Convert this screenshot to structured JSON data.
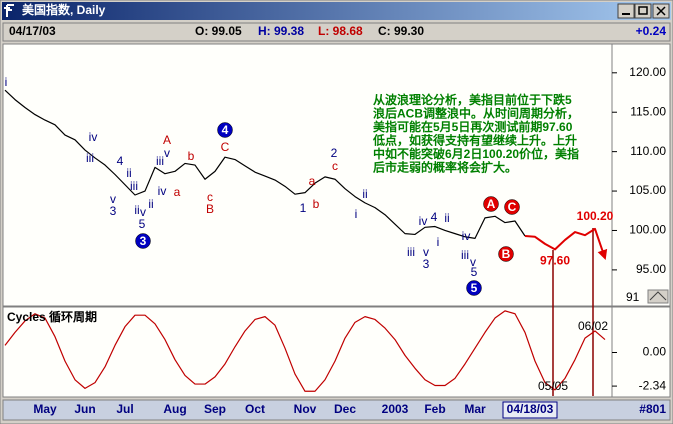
{
  "ui": {
    "window_title": "美国指数, Daily",
    "date": "04/17/03",
    "open": "O: 99.05",
    "high": "H: 99.38",
    "low": "L: 98.68",
    "close": "C: 99.30",
    "change": "+0.24",
    "scale_label": "91",
    "cursor_date": "04/18/03",
    "count": "#801"
  },
  "chart_data": [
    {
      "type": "line",
      "categories": [
        null,
        null,
        null,
        null,
        "May",
        null,
        null,
        null,
        "Jun",
        null,
        null,
        null,
        "Jul",
        null,
        null,
        null,
        null,
        "Aug",
        null,
        null,
        null,
        "Sep",
        null,
        null,
        null,
        "Oct",
        null,
        null,
        null,
        null,
        "Nov",
        null,
        null,
        null,
        "Dec",
        null,
        null,
        null,
        null,
        "2003",
        null,
        null,
        null,
        "Feb",
        null,
        null,
        null,
        "Mar",
        null,
        null,
        null,
        null,
        null,
        null,
        null,
        null,
        null,
        null,
        null,
        null,
        null
      ],
      "series": [
        {
          "color": "#000000",
          "values": [
            117.8,
            116.6,
            115.6,
            114.7,
            114,
            113.4,
            112.1,
            111.5,
            110.2,
            109.2,
            108.3,
            107.1,
            105.8,
            104.5,
            105.0,
            108,
            107.2,
            107.5,
            108.5,
            108.3,
            106.5,
            107.5,
            109.3,
            109,
            108.2,
            107.4,
            106.9,
            106.4,
            105.6,
            104.6,
            104.8,
            106,
            106.8,
            106.5,
            105.3,
            104.3,
            103.5,
            102.9,
            102,
            100.8,
            99.6,
            99.5,
            100.4,
            100.5,
            100,
            99.6,
            99.2,
            99.0,
            101.6,
            101.8,
            101,
            101.2,
            99.3,
            null,
            null,
            null,
            null,
            null,
            null,
            null,
            null
          ]
        },
        {
          "color": "#e00000",
          "arrow": true,
          "values": [
            null,
            null,
            null,
            null,
            null,
            null,
            null,
            null,
            null,
            null,
            null,
            null,
            null,
            null,
            null,
            null,
            null,
            null,
            null,
            null,
            null,
            null,
            null,
            null,
            null,
            null,
            null,
            null,
            null,
            null,
            null,
            null,
            null,
            null,
            null,
            null,
            null,
            null,
            null,
            null,
            null,
            null,
            null,
            null,
            null,
            null,
            null,
            null,
            null,
            null,
            null,
            null,
            99.3,
            99.2,
            98.3,
            97.6,
            98.8,
            99.8,
            99.4,
            100.2,
            96.5
          ],
          "value_labels": [
            null,
            null,
            null,
            null,
            null,
            null,
            null,
            null,
            null,
            null,
            null,
            null,
            null,
            null,
            null,
            null,
            null,
            null,
            null,
            null,
            null,
            null,
            null,
            null,
            null,
            null,
            null,
            null,
            null,
            null,
            null,
            null,
            null,
            null,
            null,
            null,
            null,
            null,
            null,
            null,
            null,
            null,
            null,
            null,
            null,
            null,
            null,
            null,
            null,
            null,
            null,
            null,
            null,
            null,
            null,
            "97.60",
            null,
            null,
            null,
            "100.20",
            null
          ]
        }
      ],
      "ylim": [
        90.8,
        123.4
      ],
      "yticks": [
        {
          "value": 95,
          "label": "95.00"
        },
        {
          "value": 100,
          "label": "100.00"
        },
        {
          "value": 105,
          "label": "105.00"
        },
        {
          "value": 110,
          "label": "110.00"
        },
        {
          "value": 115,
          "label": "115.00"
        },
        {
          "value": 120,
          "label": "120.00"
        }
      ],
      "grid": false,
      "wave_labels": [
        "i",
        "iv",
        "iii",
        "4",
        "ii",
        "v",
        "3",
        "iii",
        "ii",
        "v",
        "5",
        "3",
        "iv",
        "ii",
        "iii",
        "v",
        "A",
        "a",
        "b",
        "c",
        "B",
        "C",
        "4",
        "1",
        "a",
        "b",
        "2",
        "c",
        "ii",
        "i",
        "iv",
        "4",
        "ii",
        "iii",
        "i",
        "v",
        "3",
        "iv",
        "iii",
        "v",
        "5",
        "5",
        "A",
        "C",
        "B"
      ],
      "note": [
        "从波浪理论分析，美指目前位于下跌5",
        "浪后ACB调整浪中。从时间周期分析，",
        "美指可能在5月5日再次测试前期97.60",
        "低点，如获得支持有望继续上升。上升",
        "中如不能突破6月2日100.20价位，美指",
        "后市走弱的概率将会扩大。"
      ]
    },
    {
      "type": "line",
      "title": "Cycles 循环周期",
      "series": [
        {
          "color": "#c00000",
          "values": [
            0.5,
            1.4,
            2.2,
            2.7,
            2.4,
            1.1,
            -0.6,
            -1.9,
            -2.5,
            -2.1,
            -1.0,
            0.5,
            1.8,
            2.6,
            2.6,
            2.0,
            0.9,
            -0.5,
            -1.6,
            -2.2,
            -2.2,
            -1.7,
            -0.8,
            0.4,
            1.5,
            2.3,
            2.5,
            1.9,
            0.3,
            -1.5,
            -2.7,
            -2.7,
            -1.9,
            -0.6,
            1.0,
            2.1,
            2.5,
            2.3,
            1.7,
            0.9,
            -0.2,
            -1.1,
            -1.9,
            -2.3,
            -2.3,
            -1.8,
            -0.8,
            0.3,
            1.4,
            2.4,
            2.9,
            2.7,
            1.4,
            -0.6,
            -2.1,
            -2.6,
            -1.8,
            -0.5,
            1.0,
            1.5,
            0.9
          ]
        }
      ],
      "ylim": [
        -3.03,
        3.1
      ],
      "yticks": [
        {
          "value": 0,
          "label": "0.00"
        },
        {
          "value": -2.34,
          "label": "-2.34"
        }
      ],
      "markers": [
        "05/05",
        "06/02"
      ]
    }
  ]
}
